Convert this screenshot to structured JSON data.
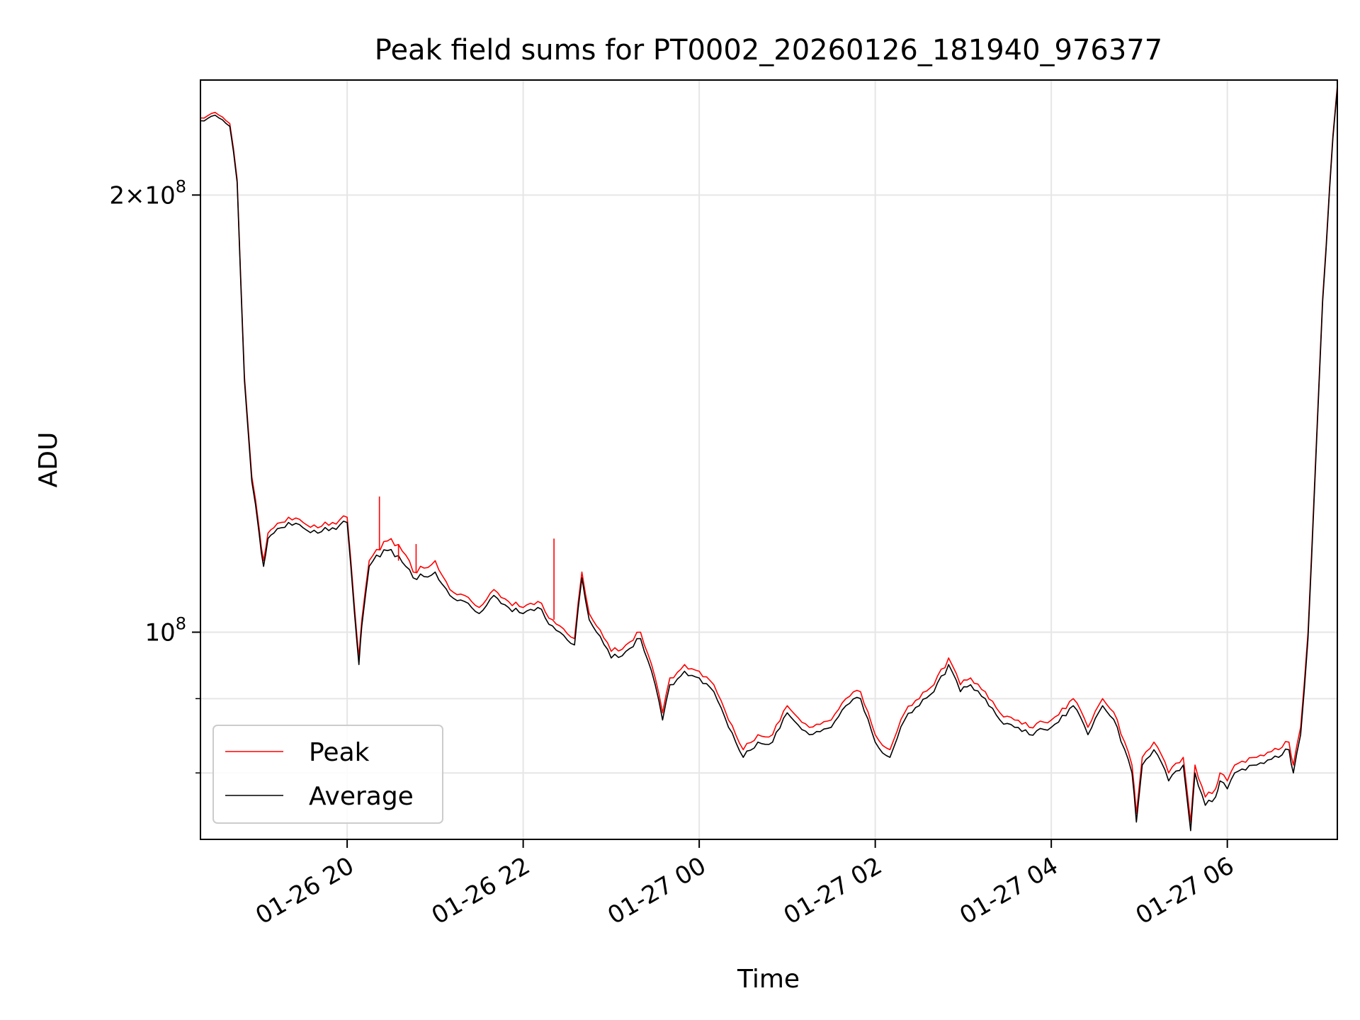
{
  "chart_data": {
    "type": "line",
    "title": "Peak field sums for PT0002_20260126_181940_976377",
    "xlabel": "Time",
    "ylabel": "ADU",
    "yscale": "log",
    "ylim": [
      72000000,
      240000000
    ],
    "xlim": [
      "2026-01-26 18:20",
      "2026-01-27 07:15"
    ],
    "x_ticks": [
      {
        "value": "2026-01-26 20:00",
        "label": "01-26 20"
      },
      {
        "value": "2026-01-26 22:00",
        "label": "01-26 22"
      },
      {
        "value": "2026-01-27 00:00",
        "label": "01-27 00"
      },
      {
        "value": "2026-01-27 02:00",
        "label": "01-27 02"
      },
      {
        "value": "2026-01-27 04:00",
        "label": "01-27 04"
      },
      {
        "value": "2026-01-27 06:00",
        "label": "01-27 06"
      }
    ],
    "y_major_ticks": [
      {
        "value": 100000000,
        "base": "10",
        "exp": "8",
        "coef": ""
      },
      {
        "value": 200000000,
        "base": "10",
        "exp": "8",
        "coef": "2×"
      }
    ],
    "y_minor_ticks": [
      80000000,
      90000000
    ],
    "grid": true,
    "legend": "lower-left",
    "colors": {
      "peak": "#ff0000",
      "average": "#000000",
      "grid": "#e6e6e6"
    },
    "x": [
      "2026-01-26 18:20",
      "2026-01-26 18:30",
      "2026-01-26 18:40",
      "2026-01-26 18:45",
      "2026-01-26 18:50",
      "2026-01-26 18:55",
      "2026-01-26 19:00",
      "2026-01-26 19:03",
      "2026-01-26 19:06",
      "2026-01-26 19:10",
      "2026-01-26 19:15",
      "2026-01-26 19:20",
      "2026-01-26 19:30",
      "2026-01-26 19:40",
      "2026-01-26 19:50",
      "2026-01-26 20:00",
      "2026-01-26 20:05",
      "2026-01-26 20:08",
      "2026-01-26 20:10",
      "2026-01-26 20:15",
      "2026-01-26 20:20",
      "2026-01-26 20:30",
      "2026-01-26 20:40",
      "2026-01-26 20:45",
      "2026-01-26 21:00",
      "2026-01-26 21:10",
      "2026-01-26 21:20",
      "2026-01-26 21:30",
      "2026-01-26 21:40",
      "2026-01-26 21:50",
      "2026-01-26 22:00",
      "2026-01-26 22:10",
      "2026-01-26 22:20",
      "2026-01-26 22:25",
      "2026-01-26 22:35",
      "2026-01-26 22:40",
      "2026-01-26 22:45",
      "2026-01-26 22:50",
      "2026-01-26 23:00",
      "2026-01-26 23:10",
      "2026-01-26 23:20",
      "2026-01-26 23:30",
      "2026-01-26 23:35",
      "2026-01-26 23:40",
      "2026-01-26 23:50",
      "2026-01-27 00:00",
      "2026-01-27 00:10",
      "2026-01-27 00:20",
      "2026-01-27 00:30",
      "2026-01-27 00:40",
      "2026-01-27 00:50",
      "2026-01-27 01:00",
      "2026-01-27 01:15",
      "2026-01-27 01:30",
      "2026-01-27 01:40",
      "2026-01-27 01:50",
      "2026-01-27 02:00",
      "2026-01-27 02:10",
      "2026-01-27 02:20",
      "2026-01-27 02:30",
      "2026-01-27 02:40",
      "2026-01-27 02:50",
      "2026-01-27 02:58",
      "2026-01-27 03:05",
      "2026-01-27 03:15",
      "2026-01-27 03:25",
      "2026-01-27 03:35",
      "2026-01-27 03:45",
      "2026-01-27 04:00",
      "2026-01-27 04:15",
      "2026-01-27 04:25",
      "2026-01-27 04:35",
      "2026-01-27 04:45",
      "2026-01-27 04:55",
      "2026-01-27 04:58",
      "2026-01-27 05:02",
      "2026-01-27 05:10",
      "2026-01-27 05:20",
      "2026-01-27 05:30",
      "2026-01-27 05:35",
      "2026-01-27 05:38",
      "2026-01-27 05:45",
      "2026-01-27 05:52",
      "2026-01-27 05:55",
      "2026-01-27 06:00",
      "2026-01-27 06:05",
      "2026-01-27 06:20",
      "2026-01-27 06:35",
      "2026-01-27 06:42",
      "2026-01-27 06:45",
      "2026-01-27 06:50",
      "2026-01-27 06:55",
      "2026-01-27 07:00",
      "2026-01-27 07:05",
      "2026-01-27 07:12",
      "2026-01-27 07:15"
    ],
    "series": [
      {
        "name": "Peak",
        "values": [
          226,
          228,
          224,
          205,
          150,
          128,
          118,
          112,
          117,
          118,
          119,
          120,
          119,
          118,
          119,
          120,
          104,
          96,
          102,
          112,
          114,
          116,
          113,
          110,
          112,
          107,
          106,
          104,
          107,
          105,
          104,
          105,
          102,
          101,
          99,
          110,
          103,
          101,
          97,
          98,
          100,
          93,
          88,
          93,
          95,
          94,
          92,
          87,
          83,
          85,
          85,
          89,
          86,
          87,
          90,
          91,
          85,
          83,
          88,
          90,
          92,
          96,
          92,
          93,
          91,
          88,
          87,
          86,
          87,
          90,
          86,
          90,
          87,
          81,
          75,
          82,
          84,
          80,
          82,
          74,
          81,
          77,
          78,
          80,
          79,
          81,
          82,
          83,
          84,
          81,
          86,
          100,
          130,
          170,
          220,
          238
        ]
      },
      {
        "name": "Average",
        "values": [
          225,
          227,
          223,
          204,
          149,
          127,
          117,
          111,
          116,
          117,
          118,
          119,
          118,
          117,
          118,
          119,
          103,
          95,
          101,
          111,
          113,
          114,
          111,
          109,
          110,
          106,
          105,
          103,
          106,
          104,
          103,
          104,
          101,
          100,
          98,
          109,
          102,
          100,
          96,
          97,
          99,
          92,
          87,
          92,
          94,
          93,
          91,
          86,
          82,
          84,
          84,
          88,
          85,
          86,
          89,
          90,
          84,
          82,
          87,
          89,
          91,
          95,
          91,
          92,
          90,
          87,
          86,
          85,
          86,
          89,
          85,
          89,
          86,
          80,
          74,
          81,
          83,
          79,
          81,
          73,
          80,
          76,
          77,
          79,
          78,
          80,
          81,
          82,
          83,
          80,
          85,
          99,
          129,
          169,
          219,
          237
        ]
      }
    ],
    "value_unit_note": "",
    "spikes": [
      {
        "x": "2026-01-26 20:22",
        "from": 114,
        "to": 124
      },
      {
        "x": "2026-01-26 20:35",
        "from": 112,
        "to": 115
      },
      {
        "x": "2026-01-26 20:47",
        "from": 110,
        "to": 115
      },
      {
        "x": "2026-01-26 22:21",
        "from": 102,
        "to": 116
      }
    ]
  }
}
